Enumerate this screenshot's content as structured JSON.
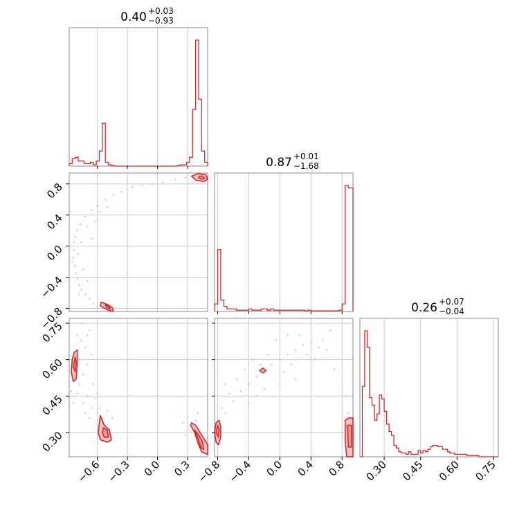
{
  "chart_data": {
    "type": "corner",
    "parameters": [
      "p0",
      "p1",
      "p2"
    ],
    "grid": true,
    "colors": {
      "line": "#d62728",
      "fill": "#f4b9bb",
      "points": "#ef9a9b",
      "grid": "#c8c8c8",
      "frame": "#888888"
    },
    "titles": [
      {
        "value": "0.40",
        "plus": "+0.03",
        "minus": "−0.93"
      },
      {
        "value": "0.87",
        "plus": "+0.01",
        "minus": "−1.68"
      },
      {
        "value": "0.26",
        "plus": "+0.07",
        "minus": "−0.04"
      }
    ],
    "ranges": [
      [
        -0.88,
        0.5
      ],
      [
        -0.84,
        0.94
      ],
      [
        0.2,
        0.77
      ]
    ],
    "ticks": [
      {
        "values": [
          -0.6,
          -0.3,
          0.0,
          0.3
        ],
        "labels": [
          "−0.6",
          "−0.3",
          "0.0",
          "0.3"
        ]
      },
      {
        "values": [
          -0.8,
          -0.4,
          0.0,
          0.4,
          0.8
        ],
        "labels": [
          "−0.8",
          "−0.4",
          "0.0",
          "0.4",
          "0.8"
        ]
      },
      {
        "values": [
          0.3,
          0.45,
          0.6,
          0.75
        ],
        "labels": [
          "0.30",
          "0.45",
          "0.60",
          "0.75"
        ]
      }
    ],
    "histograms": [
      {
        "param": 0,
        "edges": [
          -0.88,
          -0.85,
          -0.82,
          -0.79,
          -0.76,
          -0.73,
          -0.7,
          -0.67,
          -0.64,
          -0.61,
          -0.58,
          -0.55,
          -0.52,
          -0.49,
          -0.46,
          -0.43,
          -0.4,
          -0.37,
          -0.34,
          -0.31,
          -0.28,
          -0.25,
          -0.22,
          -0.19,
          -0.16,
          -0.13,
          -0.1,
          -0.07,
          -0.04,
          -0.01,
          0.02,
          0.05,
          0.08,
          0.11,
          0.14,
          0.17,
          0.2,
          0.23,
          0.26,
          0.29,
          0.32,
          0.35,
          0.38,
          0.41,
          0.44,
          0.47,
          0.5
        ],
        "counts": [
          0.02,
          0.06,
          0.07,
          0.04,
          0.04,
          0.02,
          0.02,
          0.03,
          0.01,
          0.04,
          0.12,
          0.34,
          0.03,
          0.01,
          0.005,
          0,
          0,
          0,
          0,
          0,
          0,
          0,
          0,
          0,
          0,
          0,
          0,
          0,
          0,
          0,
          0,
          0,
          0,
          0,
          0,
          0,
          0.005,
          0.01,
          0.01,
          0.03,
          0.07,
          0.45,
          1.0,
          0.53,
          0.12,
          0.03
        ]
      },
      {
        "param": 1,
        "edges": [
          -0.84,
          -0.8,
          -0.76,
          -0.72,
          -0.68,
          -0.64,
          -0.6,
          -0.56,
          -0.52,
          -0.48,
          -0.44,
          -0.4,
          -0.36,
          -0.32,
          -0.28,
          -0.24,
          -0.2,
          -0.16,
          -0.12,
          -0.08,
          -0.04,
          0.0,
          0.04,
          0.08,
          0.12,
          0.16,
          0.2,
          0.24,
          0.28,
          0.32,
          0.36,
          0.4,
          0.44,
          0.48,
          0.52,
          0.56,
          0.6,
          0.64,
          0.68,
          0.72,
          0.76,
          0.8,
          0.84,
          0.88,
          0.94
        ],
        "counts": [
          0.06,
          0.49,
          0.09,
          0.04,
          0.02,
          0.02,
          0.02,
          0.01,
          0.01,
          0.01,
          0.01,
          0.02,
          0.01,
          0.01,
          0.01,
          0.02,
          0.02,
          0.01,
          0.02,
          0.01,
          0.01,
          0.01,
          0.01,
          0.01,
          0.01,
          0.01,
          0.01,
          0.01,
          0.01,
          0.005,
          0.01,
          0.005,
          0.005,
          0.005,
          0.005,
          0.005,
          0.005,
          0.005,
          0.005,
          0.005,
          0.01,
          0.06,
          1.0,
          0.98
        ]
      },
      {
        "param": 2,
        "edges": [
          0.2,
          0.21,
          0.22,
          0.23,
          0.24,
          0.25,
          0.26,
          0.27,
          0.28,
          0.29,
          0.3,
          0.31,
          0.32,
          0.33,
          0.34,
          0.35,
          0.36,
          0.37,
          0.38,
          0.39,
          0.4,
          0.41,
          0.42,
          0.43,
          0.44,
          0.45,
          0.46,
          0.47,
          0.48,
          0.49,
          0.5,
          0.51,
          0.52,
          0.53,
          0.54,
          0.55,
          0.56,
          0.57,
          0.58,
          0.59,
          0.6,
          0.61,
          0.62,
          0.63,
          0.64,
          0.65,
          0.66,
          0.67,
          0.68,
          0.69,
          0.7,
          0.71,
          0.72,
          0.73,
          0.74,
          0.75,
          0.76,
          0.77
        ],
        "counts": [
          0,
          0.56,
          1.0,
          0.87,
          0.47,
          0.41,
          0.29,
          0.34,
          0.49,
          0.46,
          0.36,
          0.26,
          0.2,
          0.17,
          0.09,
          0.07,
          0.04,
          0.03,
          0.03,
          0.02,
          0.04,
          0.02,
          0.02,
          0.02,
          0.05,
          0.03,
          0.05,
          0.04,
          0.06,
          0.08,
          0.09,
          0.09,
          0.08,
          0.08,
          0.06,
          0.06,
          0.04,
          0.03,
          0.03,
          0.02,
          0.02,
          0.02,
          0.02,
          0.02,
          0.01,
          0.01,
          0.01,
          0.01,
          0.01,
          0.0,
          0.0,
          0.0,
          0.0,
          0.0,
          0.0,
          0.0,
          0.0
        ]
      }
    ],
    "scatter_points": {
      "p0_vs_p1": [
        [
          -0.83,
          -0.05
        ],
        [
          -0.84,
          -0.15
        ],
        [
          -0.82,
          -0.25
        ],
        [
          -0.81,
          -0.35
        ],
        [
          -0.8,
          -0.42
        ],
        [
          -0.78,
          -0.5
        ],
        [
          -0.76,
          -0.56
        ],
        [
          -0.72,
          -0.62
        ],
        [
          -0.68,
          -0.68
        ],
        [
          -0.64,
          -0.74
        ],
        [
          -0.6,
          -0.78
        ],
        [
          -0.83,
          0.05
        ],
        [
          -0.82,
          0.12
        ],
        [
          -0.8,
          0.2
        ],
        [
          -0.77,
          0.28
        ],
        [
          -0.72,
          0.38
        ],
        [
          -0.66,
          0.46
        ],
        [
          -0.6,
          0.52
        ],
        [
          -0.52,
          0.6
        ],
        [
          -0.44,
          0.66
        ],
        [
          -0.36,
          0.7
        ],
        [
          -0.25,
          0.76
        ],
        [
          -0.15,
          0.78
        ],
        [
          -0.05,
          0.8
        ],
        [
          0.05,
          0.82
        ],
        [
          0.18,
          0.86
        ],
        [
          0.28,
          0.88
        ],
        [
          0.35,
          0.9
        ],
        [
          -0.7,
          0.25
        ],
        [
          -0.74,
          -0.3
        ],
        [
          -0.79,
          -0.1
        ],
        [
          -0.65,
          0.1
        ],
        [
          -0.62,
          0.32
        ],
        [
          -0.76,
          0.05
        ],
        [
          -0.7,
          -0.45
        ],
        [
          -0.58,
          0.44
        ],
        [
          -0.5,
          0.5
        ],
        [
          -0.85,
          -0.2
        ],
        [
          -0.78,
          -0.62
        ]
      ],
      "p0_vs_p2": [
        [
          -0.84,
          0.42
        ],
        [
          -0.8,
          0.46
        ],
        [
          -0.78,
          0.5
        ],
        [
          -0.74,
          0.54
        ],
        [
          -0.7,
          0.58
        ],
        [
          -0.66,
          0.62
        ],
        [
          -0.72,
          0.65
        ],
        [
          -0.76,
          0.68
        ],
        [
          -0.68,
          0.72
        ],
        [
          -0.74,
          0.42
        ],
        [
          -0.72,
          0.38
        ],
        [
          -0.7,
          0.45
        ],
        [
          -0.66,
          0.4
        ],
        [
          -0.6,
          0.38
        ],
        [
          -0.55,
          0.35
        ],
        [
          -0.5,
          0.39
        ],
        [
          -0.45,
          0.36
        ],
        [
          -0.62,
          0.44
        ],
        [
          -0.68,
          0.36
        ],
        [
          -0.82,
          0.52
        ],
        [
          -0.8,
          0.7
        ],
        [
          -0.64,
          0.5
        ],
        [
          0.25,
          0.34
        ],
        [
          0.28,
          0.29
        ],
        [
          0.38,
          0.35
        ],
        [
          0.42,
          0.3
        ],
        [
          0.45,
          0.26
        ],
        [
          0.3,
          0.36
        ],
        [
          0.36,
          0.32
        ],
        [
          -0.58,
          0.4
        ],
        [
          -0.53,
          0.33
        ],
        [
          -0.86,
          0.47
        ],
        [
          -0.78,
          0.6
        ],
        [
          -0.75,
          0.75
        ],
        [
          -0.7,
          0.7
        ],
        [
          0.4,
          0.38
        ]
      ],
      "p1_vs_p2": [
        [
          -0.7,
          0.38
        ],
        [
          -0.6,
          0.43
        ],
        [
          -0.5,
          0.47
        ],
        [
          -0.4,
          0.5
        ],
        [
          -0.3,
          0.53
        ],
        [
          -0.2,
          0.55
        ],
        [
          -0.1,
          0.58
        ],
        [
          0.0,
          0.6
        ],
        [
          0.1,
          0.62
        ],
        [
          0.2,
          0.64
        ],
        [
          0.3,
          0.66
        ],
        [
          0.4,
          0.67
        ],
        [
          0.5,
          0.65
        ],
        [
          0.6,
          0.64
        ],
        [
          -0.55,
          0.52
        ],
        [
          -0.45,
          0.56
        ],
        [
          -0.35,
          0.6
        ],
        [
          -0.25,
          0.58
        ],
        [
          -0.15,
          0.62
        ],
        [
          0.05,
          0.55
        ],
        [
          0.15,
          0.58
        ],
        [
          0.25,
          0.7
        ],
        [
          0.35,
          0.62
        ],
        [
          -0.65,
          0.46
        ],
        [
          -0.75,
          0.4
        ],
        [
          -0.8,
          0.35
        ],
        [
          0.45,
          0.6
        ],
        [
          0.55,
          0.68
        ],
        [
          0.7,
          0.56
        ],
        [
          0.85,
          0.45
        ],
        [
          0.88,
          0.38
        ],
        [
          -0.05,
          0.68
        ],
        [
          -0.2,
          0.48
        ],
        [
          0.1,
          0.7
        ],
        [
          -0.4,
          0.42
        ],
        [
          -0.3,
          0.45
        ],
        [
          0.2,
          0.52
        ],
        [
          0.65,
          0.72
        ],
        [
          -0.7,
          0.5
        ],
        [
          0.0,
          0.5
        ]
      ]
    },
    "density_contours": {
      "p0_vs_p1": [
        {
          "level": "outer",
          "points": [
            [
              0.34,
              0.9
            ],
            [
              0.38,
              0.85
            ],
            [
              0.46,
              0.83
            ],
            [
              0.5,
              0.86
            ],
            [
              0.48,
              0.92
            ],
            [
              0.4,
              0.93
            ]
          ]
        },
        {
          "level": "inner",
          "points": [
            [
              0.41,
              0.88
            ],
            [
              0.44,
              0.86
            ],
            [
              0.47,
              0.87
            ],
            [
              0.45,
              0.9
            ],
            [
              0.42,
              0.9
            ]
          ]
        },
        {
          "level": "outer",
          "points": [
            [
              -0.56,
              -0.72
            ],
            [
              -0.5,
              -0.75
            ],
            [
              -0.45,
              -0.79
            ],
            [
              -0.44,
              -0.84
            ],
            [
              -0.5,
              -0.82
            ],
            [
              -0.57,
              -0.77
            ]
          ]
        },
        {
          "level": "inner",
          "points": [
            [
              -0.52,
              -0.75
            ],
            [
              -0.48,
              -0.78
            ],
            [
              -0.47,
              -0.81
            ],
            [
              -0.51,
              -0.79
            ]
          ]
        }
      ],
      "p0_vs_p2": [
        {
          "level": "outer",
          "points": [
            [
              -0.86,
              0.55
            ],
            [
              -0.85,
              0.6
            ],
            [
              -0.83,
              0.63
            ],
            [
              -0.8,
              0.64
            ],
            [
              -0.8,
              0.58
            ],
            [
              -0.81,
              0.52
            ],
            [
              -0.84,
              0.51
            ]
          ]
        },
        {
          "level": "inner",
          "points": [
            [
              -0.84,
              0.57
            ],
            [
              -0.82,
              0.61
            ],
            [
              -0.81,
              0.59
            ],
            [
              -0.82,
              0.55
            ]
          ]
        },
        {
          "level": "outer",
          "points": [
            [
              -0.57,
              0.37
            ],
            [
              -0.53,
              0.33
            ],
            [
              -0.48,
              0.31
            ],
            [
              -0.46,
              0.27
            ],
            [
              -0.5,
              0.26
            ],
            [
              -0.57,
              0.27
            ],
            [
              -0.59,
              0.3
            ],
            [
              -0.58,
              0.34
            ]
          ]
        },
        {
          "level": "inner",
          "points": [
            [
              -0.54,
              0.32
            ],
            [
              -0.5,
              0.31
            ],
            [
              -0.49,
              0.28
            ],
            [
              -0.53,
              0.28
            ],
            [
              -0.55,
              0.3
            ]
          ]
        },
        {
          "level": "outer",
          "points": [
            [
              0.33,
              0.33
            ],
            [
              0.37,
              0.3
            ],
            [
              0.4,
              0.26
            ],
            [
              0.44,
              0.22
            ],
            [
              0.5,
              0.21
            ],
            [
              0.5,
              0.25
            ],
            [
              0.44,
              0.29
            ],
            [
              0.38,
              0.33
            ],
            [
              0.34,
              0.34
            ]
          ]
        },
        {
          "level": "inner",
          "points": [
            [
              0.37,
              0.31
            ],
            [
              0.4,
              0.28
            ],
            [
              0.43,
              0.24
            ],
            [
              0.46,
              0.23
            ],
            [
              0.45,
              0.26
            ],
            [
              0.41,
              0.29
            ]
          ]
        }
      ],
      "p1_vs_p2": [
        {
          "level": "outer",
          "points": [
            [
              -0.84,
              0.3
            ],
            [
              -0.82,
              0.26
            ],
            [
              -0.79,
              0.25
            ],
            [
              -0.76,
              0.28
            ],
            [
              -0.76,
              0.32
            ],
            [
              -0.78,
              0.35
            ],
            [
              -0.82,
              0.34
            ]
          ]
        },
        {
          "level": "inner",
          "points": [
            [
              -0.82,
              0.3
            ],
            [
              -0.79,
              0.28
            ],
            [
              -0.78,
              0.31
            ],
            [
              -0.8,
              0.33
            ]
          ]
        },
        {
          "level": "outer",
          "points": [
            [
              -0.26,
              0.555
            ],
            [
              -0.22,
              0.545
            ],
            [
              -0.18,
              0.555
            ],
            [
              -0.22,
              0.565
            ]
          ]
        },
        {
          "level": "outer",
          "points": [
            [
              0.84,
              0.35
            ],
            [
              0.88,
              0.36
            ],
            [
              0.94,
              0.36
            ],
            [
              0.94,
              0.2
            ],
            [
              0.86,
              0.2
            ],
            [
              0.84,
              0.26
            ]
          ]
        },
        {
          "level": "inner",
          "points": [
            [
              0.87,
              0.33
            ],
            [
              0.92,
              0.33
            ],
            [
              0.92,
              0.24
            ],
            [
              0.88,
              0.24
            ]
          ]
        }
      ]
    }
  }
}
